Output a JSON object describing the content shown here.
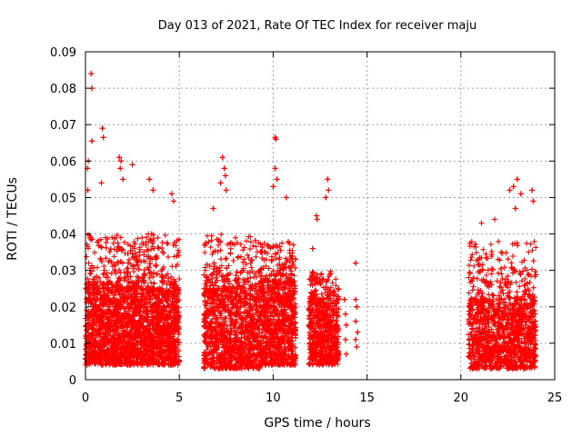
{
  "chart_data": {
    "type": "scatter",
    "title": "Day 013 of 2021, Rate Of TEC Index for receiver maju",
    "xlabel": "GPS time / hours",
    "ylabel": "ROTI / TECUs",
    "xlim": [
      0,
      25
    ],
    "ylim": [
      0,
      0.09
    ],
    "xticks": [
      0,
      5,
      10,
      15,
      20,
      25
    ],
    "yticks": [
      0,
      0.01,
      0.02,
      0.03,
      0.04,
      0.05,
      0.06,
      0.07,
      0.08,
      0.09
    ],
    "xtick_labels": [
      "0",
      "5",
      "10",
      "15",
      "20",
      "25"
    ],
    "ytick_labels": [
      "0",
      "0.01",
      "0.02",
      "0.03",
      "0.04",
      "0.05",
      "0.06",
      "0.07",
      "0.08",
      "0.09"
    ],
    "grid": true,
    "marker": "plus",
    "series_color": "#ff0000",
    "clusters": [
      {
        "x_start": 0.0,
        "x_end": 5.0,
        "y_min": 0.004,
        "y_core_max": 0.025,
        "y_spread_max": 0.04,
        "density": 2400
      },
      {
        "x_start": 6.3,
        "x_end": 9.3,
        "y_min": 0.003,
        "y_core_max": 0.025,
        "y_spread_max": 0.04,
        "density": 1200
      },
      {
        "x_start": 9.3,
        "x_end": 11.2,
        "y_min": 0.004,
        "y_core_max": 0.027,
        "y_spread_max": 0.038,
        "density": 900
      },
      {
        "x_start": 11.9,
        "x_end": 13.5,
        "y_min": 0.004,
        "y_core_max": 0.022,
        "y_spread_max": 0.03,
        "density": 700
      },
      {
        "x_start": 20.4,
        "x_end": 24.0,
        "y_min": 0.003,
        "y_core_max": 0.022,
        "y_spread_max": 0.038,
        "density": 1300
      }
    ],
    "outliers": [
      {
        "x": 0.3,
        "y": 0.084
      },
      {
        "x": 0.35,
        "y": 0.08
      },
      {
        "x": 0.35,
        "y": 0.0655
      },
      {
        "x": 0.15,
        "y": 0.06
      },
      {
        "x": 0.1,
        "y": 0.058
      },
      {
        "x": 0.12,
        "y": 0.052
      },
      {
        "x": 0.9,
        "y": 0.069
      },
      {
        "x": 0.95,
        "y": 0.0665
      },
      {
        "x": 0.85,
        "y": 0.054
      },
      {
        "x": 1.8,
        "y": 0.061
      },
      {
        "x": 1.9,
        "y": 0.06
      },
      {
        "x": 1.85,
        "y": 0.058
      },
      {
        "x": 2.0,
        "y": 0.055
      },
      {
        "x": 2.5,
        "y": 0.059
      },
      {
        "x": 3.4,
        "y": 0.055
      },
      {
        "x": 3.6,
        "y": 0.052
      },
      {
        "x": 4.6,
        "y": 0.051
      },
      {
        "x": 4.7,
        "y": 0.049
      },
      {
        "x": 7.3,
        "y": 0.061
      },
      {
        "x": 7.4,
        "y": 0.058
      },
      {
        "x": 7.45,
        "y": 0.056
      },
      {
        "x": 7.2,
        "y": 0.054
      },
      {
        "x": 7.5,
        "y": 0.052
      },
      {
        "x": 6.8,
        "y": 0.047
      },
      {
        "x": 10.1,
        "y": 0.0665
      },
      {
        "x": 10.15,
        "y": 0.066
      },
      {
        "x": 10.1,
        "y": 0.058
      },
      {
        "x": 10.2,
        "y": 0.055
      },
      {
        "x": 10.0,
        "y": 0.053
      },
      {
        "x": 10.7,
        "y": 0.05
      },
      {
        "x": 12.9,
        "y": 0.055
      },
      {
        "x": 12.95,
        "y": 0.052
      },
      {
        "x": 12.8,
        "y": 0.05
      },
      {
        "x": 12.3,
        "y": 0.045
      },
      {
        "x": 12.35,
        "y": 0.044
      },
      {
        "x": 12.1,
        "y": 0.036
      },
      {
        "x": 14.4,
        "y": 0.032
      },
      {
        "x": 14.4,
        "y": 0.022
      },
      {
        "x": 14.45,
        "y": 0.02
      },
      {
        "x": 14.4,
        "y": 0.016
      },
      {
        "x": 14.5,
        "y": 0.013
      },
      {
        "x": 14.4,
        "y": 0.011
      },
      {
        "x": 14.45,
        "y": 0.009
      },
      {
        "x": 13.8,
        "y": 0.022
      },
      {
        "x": 13.85,
        "y": 0.018
      },
      {
        "x": 13.9,
        "y": 0.015
      },
      {
        "x": 13.85,
        "y": 0.011
      },
      {
        "x": 13.9,
        "y": 0.007
      },
      {
        "x": 23.0,
        "y": 0.055
      },
      {
        "x": 22.8,
        "y": 0.053
      },
      {
        "x": 22.6,
        "y": 0.052
      },
      {
        "x": 23.2,
        "y": 0.051
      },
      {
        "x": 23.8,
        "y": 0.052
      },
      {
        "x": 23.85,
        "y": 0.049
      },
      {
        "x": 21.1,
        "y": 0.043
      },
      {
        "x": 21.8,
        "y": 0.044
      },
      {
        "x": 22.9,
        "y": 0.047
      }
    ]
  }
}
